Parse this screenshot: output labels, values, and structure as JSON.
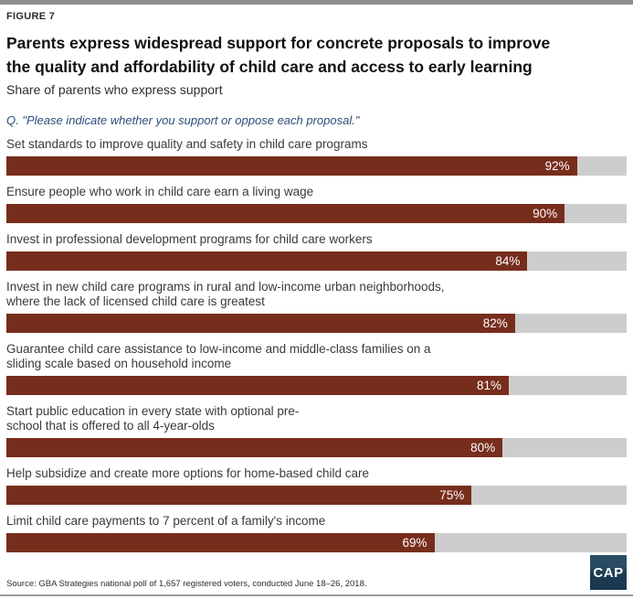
{
  "figure_label": "FIGURE 7",
  "title_lines": [
    "Parents express widespread support for concrete proposals to improve",
    "the quality and affordability of child care and access to early learning"
  ],
  "subtitle": "Share of parents who express support",
  "question": "Q. \"Please indicate whether you support or oppose each proposal.\"",
  "source": "Source: GBA Strategies national poll of 1,657 registered voters, conducted June 18–26, 2018.",
  "logo_text": "CAP",
  "colors": {
    "bar": "#772d1c",
    "track": "#cdcdcd",
    "question_text": "#2d4f7c",
    "top_rule": "#8f8f8f",
    "bottom_rule": "#9a9a9a",
    "logo_bg": "#1c3b52"
  },
  "chart_data": {
    "type": "bar",
    "orientation": "horizontal",
    "title": "Parents express widespread support for concrete proposals to improve the quality and affordability of child care and access to early learning",
    "subtitle": "Share of parents who express support",
    "annotation": "Q. \"Please indicate whether you support or oppose each proposal.\"",
    "xlim": [
      0,
      100
    ],
    "grid": false,
    "legend": false,
    "categories": [
      "Set standards to improve quality and safety in child care programs",
      "Ensure people who work in child care earn a living wage",
      "Invest in professional development programs for child care workers",
      "Invest in new child care programs in rural and low-income urban neighborhoods, where the lack of licensed child care is greatest",
      "Guarantee child care assistance to low-income and middle-class families on a sliding scale based on household income",
      "Start public education in every state with optional pre-school that is offered to all 4-year-olds",
      "Help subsidize and create more options for home-based child care",
      "Limit child care payments to 7 percent of a family's income"
    ],
    "values": [
      92,
      90,
      84,
      82,
      81,
      80,
      75,
      69
    ],
    "rows": [
      {
        "lines": [
          "Set standards to improve quality and safety in child care programs"
        ],
        "value": 92,
        "value_label": "92%"
      },
      {
        "lines": [
          "Ensure people who work in child care earn a living wage"
        ],
        "value": 90,
        "value_label": "90%"
      },
      {
        "lines": [
          "Invest in professional development programs for child care workers"
        ],
        "value": 84,
        "value_label": "84%"
      },
      {
        "lines": [
          "Invest in new child care programs in rural and low-income urban neighborhoods,",
          "where the lack of licensed child care is greatest"
        ],
        "value": 82,
        "value_label": "82%"
      },
      {
        "lines": [
          "Guarantee child care assistance to low-income and middle-class families on a",
          "sliding scale based on household income"
        ],
        "value": 81,
        "value_label": "81%"
      },
      {
        "lines": [
          "Start public education in every state with optional pre-",
          "school that is offered to all 4-year-olds"
        ],
        "value": 80,
        "value_label": "80%"
      },
      {
        "lines": [
          "Help subsidize and create more options for home-based child care"
        ],
        "value": 75,
        "value_label": "75%"
      },
      {
        "lines": [
          "Limit child care payments to 7 percent of a family's income"
        ],
        "value": 69,
        "value_label": "69%"
      }
    ]
  }
}
